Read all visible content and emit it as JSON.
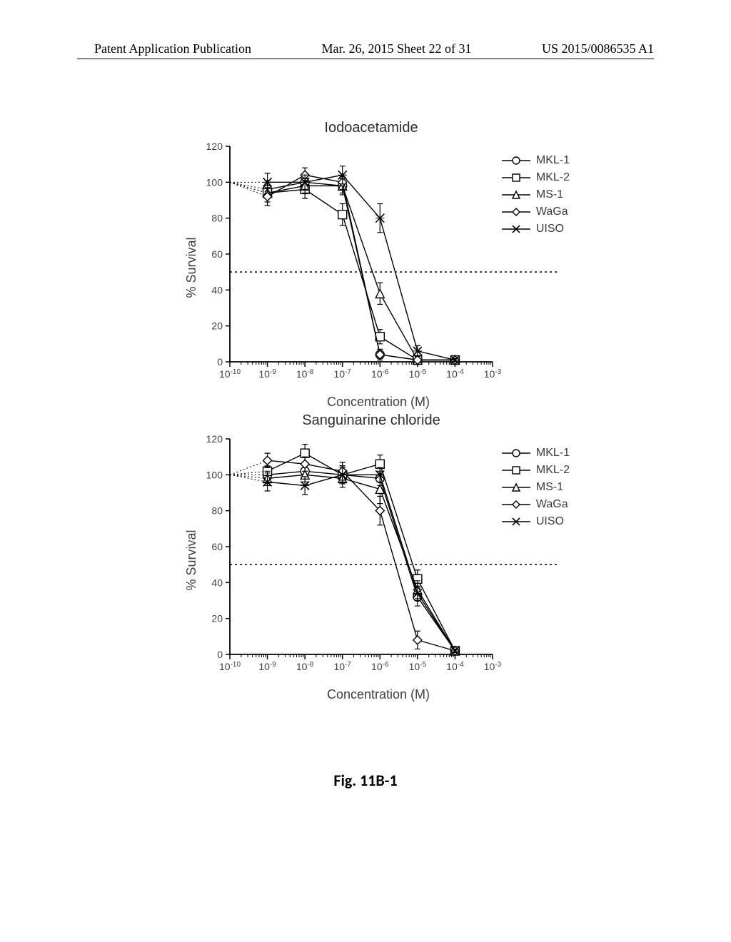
{
  "header": {
    "left": "Patent Application Publication",
    "center": "Mar. 26, 2015  Sheet 22 of 31",
    "right": "US 2015/0086535 A1"
  },
  "figure_caption": "Fig. 11B-1",
  "charts": [
    {
      "title": "Iodoacetamide",
      "xlabel": "Concentration (M)",
      "ylabel": "% Survival",
      "ylim": [
        0,
        120
      ],
      "ytick_step": 20,
      "xlog_min": -10,
      "xlog_max": -3,
      "ref_line_y": 50,
      "axis_color": "#000000",
      "grid_color": "#e0e0e0",
      "background_color": "#ffffff",
      "label_fontsize": 18,
      "title_fontsize": 20,
      "tick_fontsize": 14,
      "line_width": 1.4,
      "marker_size": 6,
      "errorbar_cap": 4,
      "series": [
        {
          "name": "MKL-1",
          "marker": "circle",
          "color": "#000000",
          "x": [
            -9,
            -8,
            -7,
            -6,
            -5,
            -4
          ],
          "y": [
            96,
            100,
            98,
            4,
            1,
            1
          ],
          "yerr": [
            4,
            3,
            5,
            3,
            1,
            1
          ]
        },
        {
          "name": "MKL-2",
          "marker": "square",
          "color": "#000000",
          "x": [
            -9,
            -8,
            -7,
            -6,
            -5,
            -4
          ],
          "y": [
            94,
            96,
            82,
            14,
            1,
            1
          ],
          "yerr": [
            7,
            5,
            6,
            4,
            1,
            1
          ]
        },
        {
          "name": "MS-1",
          "marker": "triangle",
          "color": "#000000",
          "x": [
            -9,
            -8,
            -7,
            -6,
            -5,
            -4
          ],
          "y": [
            94,
            98,
            98,
            38,
            1,
            1
          ],
          "yerr": [
            5,
            4,
            4,
            6,
            1,
            1
          ]
        },
        {
          "name": "WaGa",
          "marker": "diamond",
          "color": "#000000",
          "x": [
            -9,
            -8,
            -7,
            -6,
            -5,
            -4
          ],
          "y": [
            92,
            104,
            100,
            4,
            1,
            1
          ],
          "yerr": [
            5,
            4,
            4,
            2,
            1,
            1
          ]
        },
        {
          "name": "UISO",
          "marker": "x",
          "color": "#000000",
          "x": [
            -9,
            -8,
            -7,
            -6,
            -5,
            -4
          ],
          "y": [
            100,
            100,
            104,
            80,
            6,
            1
          ],
          "yerr": [
            5,
            4,
            5,
            8,
            3,
            1
          ]
        }
      ]
    },
    {
      "title": "Sanguinarine chloride",
      "xlabel": "Concentration (M)",
      "ylabel": "% Survival",
      "ylim": [
        0,
        120
      ],
      "ytick_step": 20,
      "xlog_min": -10,
      "xlog_max": -3,
      "ref_line_y": 50,
      "axis_color": "#000000",
      "grid_color": "#e0e0e0",
      "background_color": "#ffffff",
      "label_fontsize": 18,
      "title_fontsize": 20,
      "tick_fontsize": 14,
      "line_width": 1.4,
      "marker_size": 6,
      "errorbar_cap": 4,
      "series": [
        {
          "name": "MKL-1",
          "marker": "circle",
          "color": "#000000",
          "x": [
            -9,
            -8,
            -7,
            -6,
            -5,
            -4
          ],
          "y": [
            100,
            102,
            100,
            98,
            32,
            2
          ],
          "yerr": [
            5,
            4,
            5,
            4,
            5,
            1
          ]
        },
        {
          "name": "MKL-2",
          "marker": "square",
          "color": "#000000",
          "x": [
            -9,
            -8,
            -7,
            -6,
            -5,
            -4
          ],
          "y": [
            102,
            112,
            100,
            106,
            42,
            2
          ],
          "yerr": [
            5,
            5,
            5,
            5,
            5,
            1
          ]
        },
        {
          "name": "MS-1",
          "marker": "triangle",
          "color": "#000000",
          "x": [
            -9,
            -8,
            -7,
            -6,
            -5,
            -4
          ],
          "y": [
            98,
            100,
            98,
            92,
            36,
            2
          ],
          "yerr": [
            4,
            4,
            5,
            8,
            5,
            1
          ]
        },
        {
          "name": "WaGa",
          "marker": "diamond",
          "color": "#000000",
          "x": [
            -9,
            -8,
            -7,
            -6,
            -5,
            -4
          ],
          "y": [
            108,
            106,
            102,
            80,
            8,
            2
          ],
          "yerr": [
            4,
            4,
            5,
            8,
            5,
            1
          ]
        },
        {
          "name": "UISO",
          "marker": "x",
          "color": "#000000",
          "x": [
            -9,
            -8,
            -7,
            -6,
            -5,
            -4
          ],
          "y": [
            96,
            94,
            100,
            100,
            34,
            2
          ],
          "yerr": [
            5,
            5,
            4,
            4,
            4,
            1
          ]
        }
      ]
    }
  ],
  "legend_labels": [
    "MKL-1",
    "MKL-2",
    "MS-1",
    "WaGa",
    "UISO"
  ]
}
